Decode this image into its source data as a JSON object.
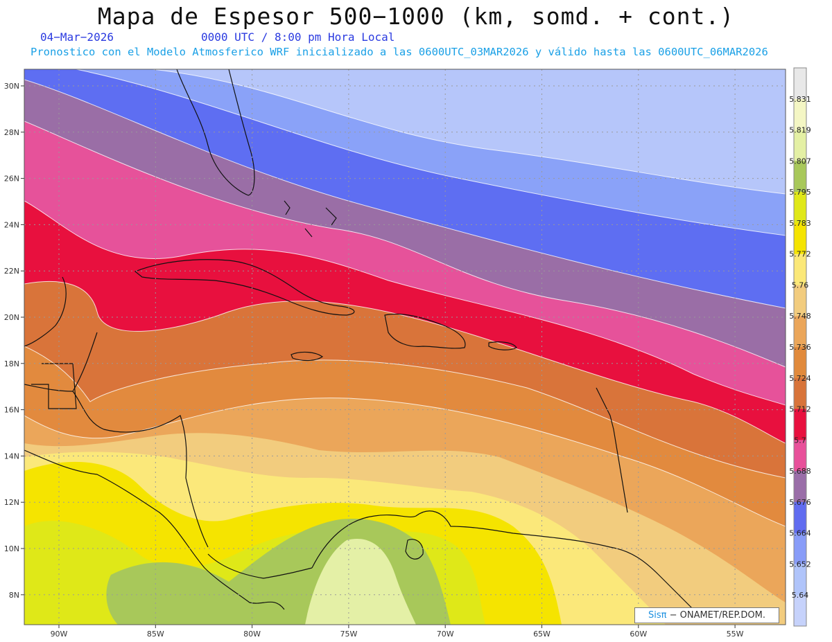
{
  "header": {
    "title": "Mapa de Espesor 500−1000 (km, somd. + cont.)",
    "date": "04−Mar−2026",
    "time": "0000 UTC / 8:00 pm Hora Local",
    "description": "Pronostico con el Modelo Atmosferico WRF inicializado a las 0600UTC_03MAR2026 y válido hasta las  0600UTC_06MAR2026"
  },
  "map": {
    "lat_labels": [
      "30N",
      "28N",
      "26N",
      "24N",
      "22N",
      "20N",
      "18N",
      "16N",
      "14N",
      "12N",
      "10N",
      "8N"
    ],
    "lon_labels": [
      "90W",
      "85W",
      "80W",
      "75W",
      "70W",
      "65W",
      "60W",
      "55W"
    ]
  },
  "colorbar": {
    "labels": [
      "5.831",
      "5.819",
      "5.807",
      "5.795",
      "5.783",
      "5.772",
      "5.76",
      "5.748",
      "5.736",
      "5.724",
      "5.712",
      "5.7",
      "5.688",
      "5.676",
      "5.664",
      "5.652",
      "5.64"
    ],
    "colors": [
      "#e8e8e8",
      "#f4f6c4",
      "#e4f0a4",
      "#a8c85a",
      "#e0e818",
      "#f5e400",
      "#fbe878",
      "#f2cc7e",
      "#eba65a",
      "#e18a3c",
      "#d8743a",
      "#e8103e",
      "#e8509a",
      "#9a6ea8",
      "#606cf0",
      "#889cf8",
      "#b0c4fa",
      "#c6d2fb"
    ]
  },
  "credit": {
    "brand": "Sisπ",
    "text": " − ONAMET/REP.DOM."
  }
}
